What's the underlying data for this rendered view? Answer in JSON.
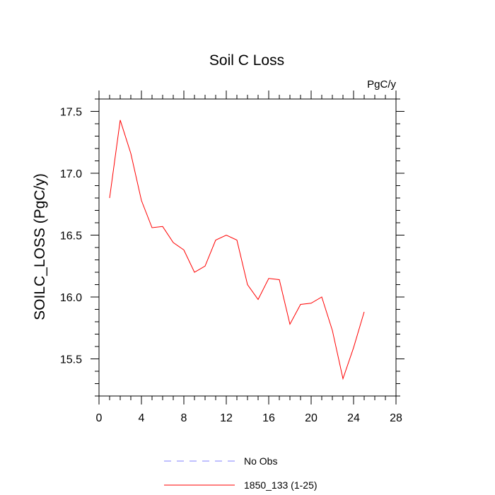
{
  "chart_data": {
    "type": "line",
    "title": "Soil C Loss",
    "units": "PgC/y",
    "xlabel": "",
    "ylabel": "SOILC_LOSS  (PgC/y)",
    "xlim": [
      0,
      28
    ],
    "ylim": [
      15.2,
      17.6
    ],
    "xticks": [
      0,
      4,
      8,
      12,
      16,
      20,
      24,
      28
    ],
    "yticks": [
      15.5,
      16.0,
      16.5,
      17.0,
      17.5
    ],
    "xtick_labels": [
      "0",
      "4",
      "8",
      "12",
      "16",
      "20",
      "24",
      "28"
    ],
    "ytick_labels": [
      "15.5",
      "16.0",
      "16.5",
      "17.0",
      "17.5"
    ],
    "grid": false,
    "legend_position": "bottom",
    "series": [
      {
        "name": "1850_133 (1-25)",
        "color": "#ff0000",
        "style": "solid",
        "x": [
          1,
          2,
          3,
          4,
          5,
          6,
          7,
          8,
          9,
          10,
          11,
          12,
          13,
          14,
          15,
          16,
          17,
          18,
          19,
          20,
          21,
          22,
          23,
          24,
          25
        ],
        "y": [
          16.8,
          17.43,
          17.16,
          16.78,
          16.56,
          16.57,
          16.44,
          16.38,
          16.2,
          16.25,
          16.46,
          16.5,
          16.46,
          16.1,
          15.98,
          16.15,
          16.14,
          15.78,
          15.94,
          15.95,
          16.0,
          15.73,
          15.34,
          15.59,
          15.88
        ]
      }
    ],
    "legend": [
      {
        "name": "No Obs",
        "color": "#8080ff",
        "style": "dashed"
      },
      {
        "name": "1850_133 (1-25)",
        "color": "#ff0000",
        "style": "solid"
      }
    ]
  }
}
